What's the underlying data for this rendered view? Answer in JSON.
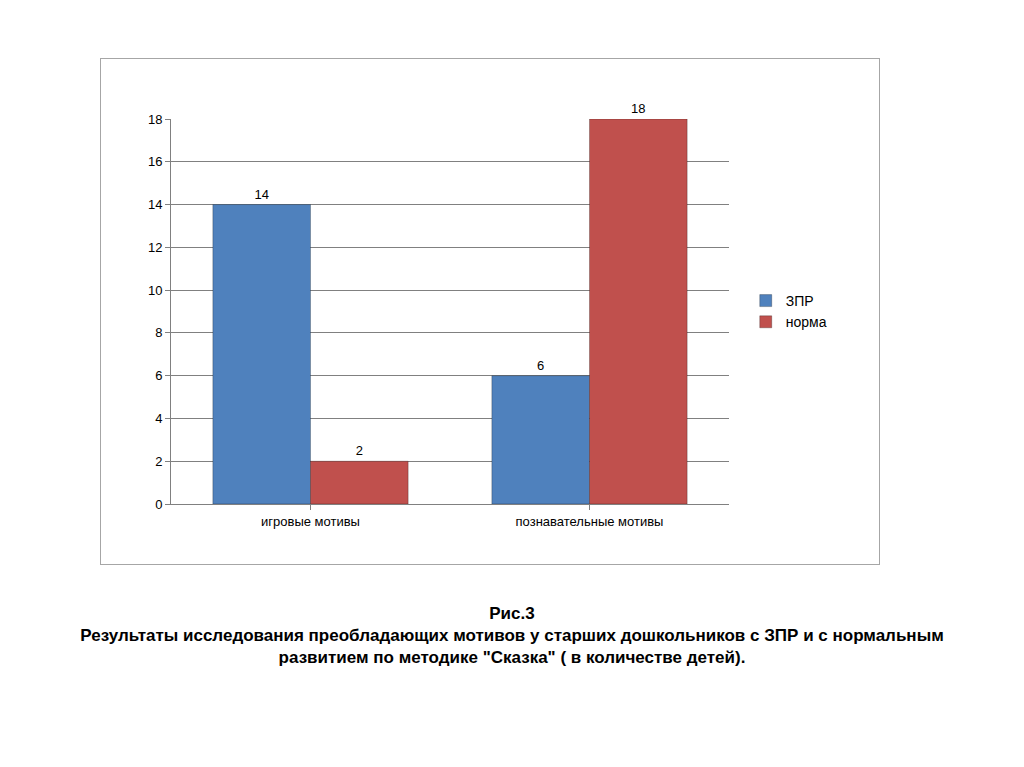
{
  "chart_data": {
    "type": "bar",
    "title": "Рис.3",
    "subtitle": "Результаты исследования преобладающих мотивов у старших дошкольников с ЗПР и с нормальным развитием по методике \"Сказка\" ( в количестве детей).",
    "categories": [
      "игровые мотивы",
      "познавательные мотивы"
    ],
    "series": [
      {
        "name": "ЗПР",
        "color": "#4f81bd",
        "values": [
          14,
          6
        ]
      },
      {
        "name": "норма",
        "color": "#c0504d",
        "values": [
          2,
          18
        ]
      }
    ],
    "ylim": [
      0,
      18
    ],
    "yticks": [
      0,
      2,
      4,
      6,
      8,
      10,
      12,
      14,
      16,
      18
    ],
    "grid": true,
    "legend": "right",
    "data_labels": true
  }
}
